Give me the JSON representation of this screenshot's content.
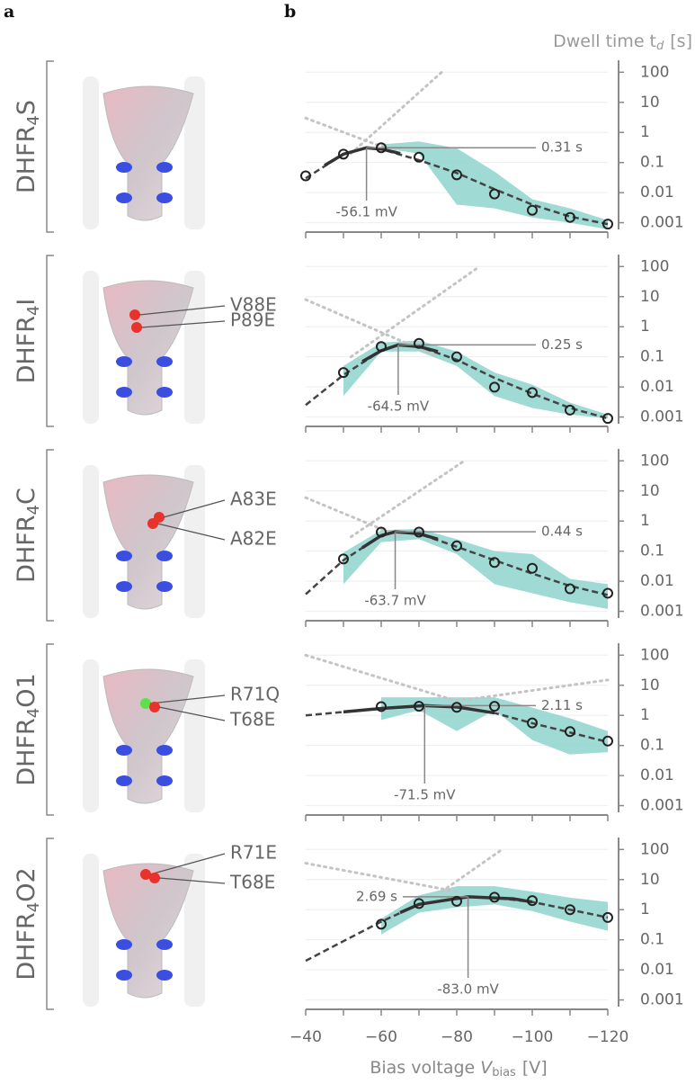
{
  "panel_labels": [
    "a",
    "b"
  ],
  "proteins": [
    {
      "name": {
        "base": "DHFR",
        "sub": "4",
        "suffix": "S"
      },
      "mutations": []
    },
    {
      "name": {
        "base": "DHFR",
        "sub": "4",
        "suffix": "I"
      },
      "mutations": [
        {
          "label": "V88E",
          "color": "#e8322b"
        },
        {
          "label": "P89E",
          "color": "#e8322b"
        }
      ]
    },
    {
      "name": {
        "base": "DHFR",
        "sub": "4",
        "suffix": "C"
      },
      "mutations": [
        {
          "label": "A83E",
          "color": "#e8322b"
        },
        {
          "label": "A82E",
          "color": "#e8322b"
        }
      ]
    },
    {
      "name": {
        "base": "DHFR",
        "sub": "4",
        "suffix": "O1"
      },
      "mutations": [
        {
          "label": "R71Q",
          "color": "#5fe04a"
        },
        {
          "label": "T68E",
          "color": "#e8322b"
        }
      ]
    },
    {
      "name": {
        "base": "DHFR",
        "sub": "4",
        "suffix": "O2"
      },
      "mutations": [
        {
          "label": "R71E",
          "color": "#e8322b"
        },
        {
          "label": "T68E",
          "color": "#e8322b"
        }
      ]
    }
  ],
  "chart_data": [
    {
      "type": "scatter",
      "log_y": true,
      "grid": true,
      "y_label": {
        "text": "Dwell time t",
        "sub": "d",
        "unit": "[s]"
      },
      "xlim": [
        -40,
        -120
      ],
      "ylim": [
        0.0006,
        250
      ],
      "xticks": [
        -40,
        -50,
        -60,
        -70,
        -80,
        -90,
        -100,
        -110,
        -120
      ],
      "yticks": [
        100,
        10,
        1,
        0.1,
        0.01,
        0.001
      ],
      "x": [
        -40,
        -50,
        -60,
        -70,
        -80,
        -90,
        -100,
        -110,
        -120
      ],
      "values": [
        0.036,
        0.19,
        0.31,
        0.15,
        0.039,
        0.009,
        0.0026,
        0.0015,
        0.0009
      ],
      "fit": {
        "x": [
          -40,
          -50,
          -56.1,
          -60,
          -70,
          -80,
          -90,
          -100,
          -110,
          -120
        ],
        "values": [
          0.03,
          0.19,
          0.31,
          0.28,
          0.12,
          0.045,
          0.013,
          0.004,
          0.0016,
          0.0009
        ]
      },
      "peak": {
        "x": [
          -45,
          -50,
          -56.1,
          -60,
          -65
        ],
        "values": [
          0.08,
          0.19,
          0.31,
          0.28,
          0.2
        ]
      },
      "asymptotes": [
        {
          "x": [
            -40,
            -65
          ],
          "values": [
            3,
            0.2
          ]
        },
        {
          "x": [
            -52,
            -76
          ],
          "values": [
            0.2,
            100
          ]
        }
      ],
      "band": {
        "x": [
          -60,
          -70,
          -80,
          -90,
          -100,
          -110,
          -120
        ],
        "lower": [
          0.3,
          0.2,
          0.004,
          0.003,
          0.0015,
          0.001,
          0.0006
        ],
        "upper": [
          0.4,
          0.5,
          0.3,
          0.05,
          0.006,
          0.003,
          0.0012
        ]
      },
      "peak_value": 0.31,
      "peak_label": "0.31 s",
      "peak_voltage": -56.1,
      "voltage_label": "-56.1 mV"
    },
    {
      "type": "scatter",
      "log_y": true,
      "grid": true,
      "xlim": [
        -40,
        -120
      ],
      "ylim": [
        0.0006,
        250
      ],
      "xticks": [
        -40,
        -50,
        -60,
        -70,
        -80,
        -90,
        -100,
        -110,
        -120
      ],
      "yticks": [
        100,
        10,
        1,
        0.1,
        0.01,
        0.001
      ],
      "x": [
        -50,
        -60,
        -70,
        -80,
        -90,
        -100,
        -110,
        -120
      ],
      "values": [
        0.03,
        0.22,
        0.28,
        0.1,
        0.0098,
        0.0065,
        0.0017,
        0.0009
      ],
      "fit": {
        "x": [
          -40,
          -50,
          -60,
          -64.5,
          -70,
          -80,
          -90,
          -100,
          -110,
          -120
        ],
        "values": [
          0.0025,
          0.025,
          0.16,
          0.25,
          0.22,
          0.08,
          0.02,
          0.006,
          0.002,
          0.0009
        ]
      },
      "peak": {
        "x": [
          -55,
          -60,
          -64.5,
          -70,
          -75
        ],
        "values": [
          0.07,
          0.16,
          0.25,
          0.22,
          0.15
        ]
      },
      "asymptotes": [
        {
          "x": [
            -40,
            -75
          ],
          "values": [
            8,
            0.1
          ]
        },
        {
          "x": [
            -52,
            -86
          ],
          "values": [
            0.1,
            100
          ]
        }
      ],
      "band": {
        "x": [
          -50,
          -60,
          -70,
          -80,
          -90,
          -100,
          -110,
          -120
        ],
        "lower": [
          0.005,
          0.15,
          0.15,
          0.05,
          0.005,
          0.002,
          0.0012,
          0.0009
        ],
        "upper": [
          0.05,
          0.3,
          0.35,
          0.15,
          0.03,
          0.012,
          0.003,
          0.0012
        ]
      },
      "peak_value": 0.25,
      "peak_label": "0.25 s",
      "peak_voltage": -64.5,
      "voltage_label": "-64.5 mV"
    },
    {
      "type": "scatter",
      "log_y": true,
      "grid": true,
      "xlim": [
        -40,
        -120
      ],
      "ylim": [
        0.0006,
        250
      ],
      "xticks": [
        -40,
        -50,
        -60,
        -70,
        -80,
        -90,
        -100,
        -110,
        -120
      ],
      "yticks": [
        100,
        10,
        1,
        0.1,
        0.01,
        0.001
      ],
      "x": [
        -50,
        -60,
        -70,
        -80,
        -90,
        -100,
        -110,
        -120
      ],
      "values": [
        0.055,
        0.43,
        0.43,
        0.15,
        0.042,
        0.027,
        0.0056,
        0.004
      ],
      "fit": {
        "x": [
          -40,
          -50,
          -60,
          -63.7,
          -70,
          -80,
          -90,
          -100,
          -110,
          -120
        ],
        "values": [
          0.0037,
          0.05,
          0.33,
          0.44,
          0.38,
          0.14,
          0.05,
          0.018,
          0.007,
          0.0035
        ]
      },
      "peak": {
        "x": [
          -55,
          -60,
          -63.7,
          -70,
          -75
        ],
        "values": [
          0.13,
          0.33,
          0.44,
          0.38,
          0.25
        ]
      },
      "asymptotes": [
        {
          "x": [
            -40,
            -65
          ],
          "values": [
            6,
            0.3
          ]
        },
        {
          "x": [
            -52,
            -82
          ],
          "values": [
            0.3,
            100
          ]
        }
      ],
      "band": {
        "x": [
          -50,
          -60,
          -70,
          -80,
          -90,
          -100,
          -110,
          -120
        ],
        "lower": [
          0.008,
          0.2,
          0.25,
          0.08,
          0.008,
          0.004,
          0.002,
          0.0012
        ],
        "upper": [
          0.09,
          0.5,
          0.55,
          0.25,
          0.1,
          0.08,
          0.012,
          0.008
        ]
      },
      "peak_value": 0.44,
      "peak_label": "0.44 s",
      "peak_voltage": -63.7,
      "voltage_label": "-63.7 mV"
    },
    {
      "type": "scatter",
      "log_y": true,
      "grid": true,
      "xlim": [
        -40,
        -120
      ],
      "ylim": [
        0.0006,
        250
      ],
      "xticks": [
        -40,
        -50,
        -60,
        -70,
        -80,
        -90,
        -100,
        -110,
        -120
      ],
      "yticks": [
        100,
        10,
        1,
        0.1,
        0.01,
        0.001
      ],
      "x": [
        -60,
        -70,
        -80,
        -90,
        -100,
        -110,
        -120
      ],
      "values": [
        1.96,
        2.0,
        1.85,
        2.0,
        0.56,
        0.29,
        0.14
      ],
      "fit": {
        "x": [
          -40,
          -50,
          -60,
          -71.5,
          -80,
          -90,
          -100,
          -110,
          -120
        ],
        "values": [
          1.0,
          1.3,
          1.7,
          2.11,
          1.9,
          1.2,
          0.55,
          0.27,
          0.13
        ]
      },
      "peak": {
        "x": [
          -50,
          -60,
          -71.5,
          -80,
          -90
        ],
        "values": [
          1.3,
          1.7,
          2.11,
          1.9,
          1.2
        ]
      },
      "asymptotes": [
        {
          "x": [
            -40,
            -80
          ],
          "values": [
            100,
            3
          ]
        },
        {
          "x": [
            -80,
            -120
          ],
          "values": [
            3,
            15
          ]
        }
      ],
      "band": {
        "x": [
          -60,
          -70,
          -80,
          -90,
          -100,
          -110,
          -120
        ],
        "lower": [
          0.7,
          1.5,
          0.3,
          1.5,
          0.15,
          0.05,
          0.06
        ],
        "upper": [
          4,
          4,
          4,
          4,
          1.8,
          0.8,
          0.3
        ]
      },
      "peak_value": 2.11,
      "peak_label": "2.11 s",
      "peak_voltage": -71.5,
      "voltage_label": "-71.5 mV"
    },
    {
      "type": "scatter",
      "log_y": true,
      "grid": true,
      "x_label": {
        "text": "Bias voltage",
        "var": "V",
        "sub": "bias",
        "unit": "[V]"
      },
      "xlim": [
        -40,
        -120
      ],
      "ylim": [
        0.0006,
        250
      ],
      "xticks": [
        {
          "value": -40,
          "label": "−40"
        },
        {
          "value": -60,
          "label": "−60"
        },
        {
          "value": -80,
          "label": "−80"
        },
        {
          "value": -100,
          "label": "−100"
        },
        {
          "value": -120,
          "label": "−120"
        }
      ],
      "xticks_minor": [
        -50,
        -70,
        -90,
        -110
      ],
      "yticks": [
        100,
        10,
        1,
        0.1,
        0.01,
        0.001
      ],
      "x": [
        -60,
        -70,
        -80,
        -90,
        -100,
        -110,
        -120
      ],
      "values": [
        0.33,
        1.6,
        1.9,
        2.6,
        2.0,
        1.0,
        0.55
      ],
      "fit": {
        "x": [
          -40,
          -50,
          -60,
          -70,
          -83,
          -90,
          -100,
          -110,
          -120
        ],
        "values": [
          0.02,
          0.09,
          0.4,
          1.5,
          2.69,
          2.5,
          1.8,
          1.0,
          0.55
        ]
      },
      "peak": {
        "x": [
          -65,
          -70,
          -83,
          -95,
          -100
        ],
        "values": [
          0.8,
          1.5,
          2.69,
          2.3,
          1.8
        ]
      },
      "asymptotes": [
        {
          "x": [
            -40,
            -80
          ],
          "values": [
            35,
            4
          ]
        },
        {
          "x": [
            -76,
            -92
          ],
          "values": [
            4,
            100
          ]
        }
      ],
      "band": {
        "x": [
          -60,
          -70,
          -80,
          -90,
          -100,
          -110,
          -120
        ],
        "lower": [
          0.15,
          0.8,
          1.2,
          1.5,
          0.9,
          0.4,
          0.2
        ],
        "upper": [
          0.5,
          3,
          6,
          6,
          4,
          2.5,
          1.8
        ]
      },
      "peak_value": 2.69,
      "peak_label": "2.69 s",
      "peak_voltage": -83.0,
      "voltage_label": "-83.0 mV"
    }
  ]
}
